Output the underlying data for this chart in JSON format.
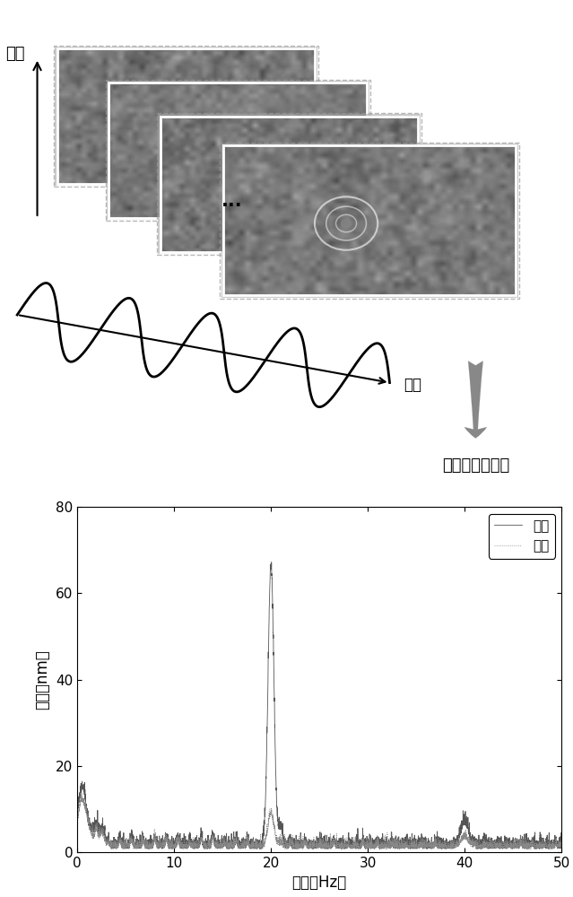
{
  "bg_color": "#ffffff",
  "voltage_label": "电压",
  "time_label": "时间",
  "fft_label": "快速傅里叶变换",
  "ylabel": "振幅（nm）",
  "xlabel": "频率（Hz）",
  "ylim": [
    0,
    80
  ],
  "xlim": [
    0,
    50
  ],
  "yticks": [
    0,
    20,
    40,
    60,
    80
  ],
  "xticks": [
    0,
    10,
    20,
    30,
    40,
    50
  ],
  "legend_particle": "颗粒",
  "legend_background": "背景",
  "particle_color": "#555555",
  "bg_line_color": "#888888",
  "noise_amplitude": 1.5,
  "dc_peak_amplitude": 12.0,
  "main_peak_freq": 20.0,
  "main_peak_amplitude": 65.0,
  "harmonic_freq": 40.0,
  "harmonic_amplitude": 5.5,
  "wave_color": "#000000",
  "arrow_color": "#888888",
  "dots_text": "...",
  "frame_base_gray": 0.72,
  "frame_noise_scale": 0.18
}
